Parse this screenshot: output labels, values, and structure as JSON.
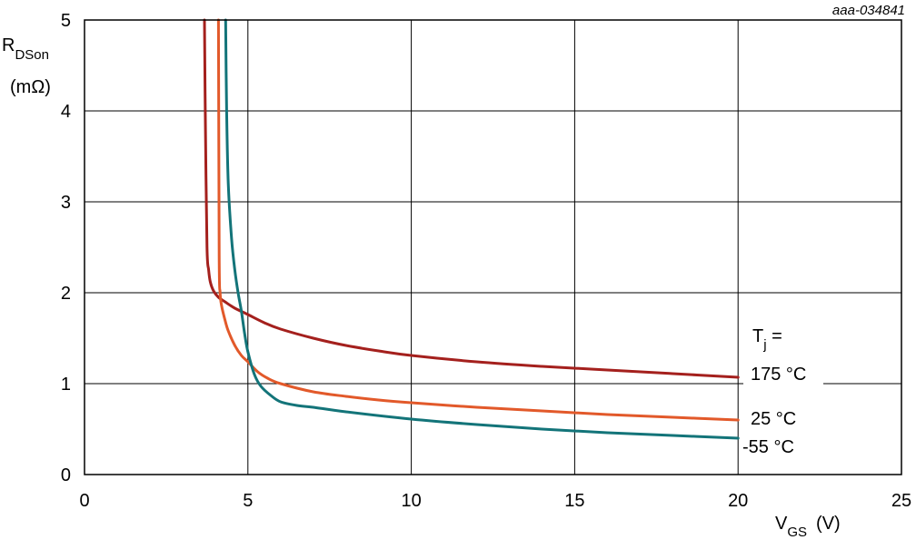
{
  "chart_data": {
    "type": "line",
    "figure_code": "aaa-034841",
    "ylabel": {
      "main": "R",
      "sub": "DSon",
      "unit": "(mΩ)"
    },
    "xlabel": {
      "main": "V",
      "sub": "GS",
      "unit": "(V)"
    },
    "xlim": [
      0,
      25
    ],
    "ylim": [
      0,
      5
    ],
    "xticks": [
      0,
      5,
      10,
      15,
      20,
      25
    ],
    "yticks": [
      0,
      1,
      2,
      3,
      4,
      5
    ],
    "grid": true,
    "legend_title": {
      "main": "T",
      "sub": "j",
      "suffix": " ="
    },
    "series": [
      {
        "name": "175 °C",
        "color": "#a4201d",
        "x": [
          3.67,
          3.7,
          3.75,
          3.8,
          3.85,
          3.95,
          4.1,
          4.3,
          4.6,
          5.0,
          5.5,
          6.0,
          7.0,
          8.0,
          9.0,
          10.0,
          12.0,
          14.0,
          16.0,
          18.0,
          20.0
        ],
        "y": [
          5.0,
          3.8,
          2.5,
          2.25,
          2.12,
          2.02,
          1.95,
          1.9,
          1.83,
          1.76,
          1.67,
          1.6,
          1.5,
          1.42,
          1.36,
          1.31,
          1.24,
          1.19,
          1.15,
          1.11,
          1.07
        ]
      },
      {
        "name": "25 °C",
        "color": "#e2592a",
        "x": [
          4.1,
          4.12,
          4.15,
          4.2,
          4.3,
          4.4,
          4.6,
          4.8,
          5.0,
          5.3,
          5.6,
          6.0,
          7.0,
          8.0,
          9.0,
          10.0,
          12.0,
          14.0,
          16.0,
          18.0,
          20.0
        ],
        "y": [
          5.0,
          2.4,
          2.0,
          1.85,
          1.7,
          1.58,
          1.42,
          1.31,
          1.24,
          1.13,
          1.06,
          1.0,
          0.91,
          0.86,
          0.82,
          0.79,
          0.74,
          0.7,
          0.66,
          0.63,
          0.6
        ]
      },
      {
        "name": "-55 °C",
        "color": "#137479",
        "x": [
          4.32,
          4.35,
          4.4,
          4.5,
          4.6,
          4.7,
          4.8,
          4.9,
          5.0,
          5.2,
          5.4,
          5.7,
          6.0,
          6.5,
          7.0,
          8.0,
          10.0,
          12.0,
          14.0,
          16.0,
          18.0,
          20.0
        ],
        "y": [
          5.0,
          4.0,
          3.2,
          2.6,
          2.25,
          2.0,
          1.8,
          1.55,
          1.35,
          1.1,
          0.97,
          0.87,
          0.8,
          0.76,
          0.74,
          0.69,
          0.61,
          0.55,
          0.5,
          0.46,
          0.43,
          0.4
        ]
      }
    ]
  }
}
